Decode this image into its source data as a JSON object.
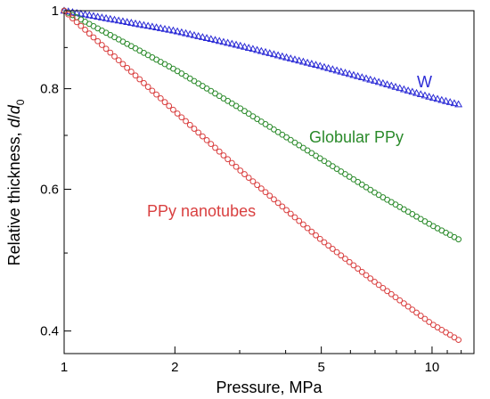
{
  "chart_data": {
    "type": "scatter",
    "x_scale": "log",
    "y_scale": "log",
    "xlim": [
      1,
      13
    ],
    "ylim": [
      0.375,
      1.0
    ],
    "grid": false,
    "xlabel": "Pressure, MPa",
    "ylabel_prefix": "Relative thickness, ",
    "ylabel_var": "d",
    "ylabel_sep": "/",
    "ylabel_var2": "d",
    "ylabel_sub": "0",
    "x_ticks": [
      1,
      2,
      5,
      10
    ],
    "x_tick_labels": [
      "1",
      "2",
      "5",
      "10"
    ],
    "y_ticks": [
      0.4,
      0.6,
      0.8,
      1.0
    ],
    "y_tick_labels": [
      "0.4",
      "0.6",
      "0.8",
      "1"
    ],
    "series": [
      {
        "name": "W",
        "marker": "triangle",
        "color": "#2b2bd6",
        "x": [
          1.0,
          1.5,
          2.0,
          3.0,
          5.0,
          7.0,
          10.0,
          11.8
        ],
        "y": [
          1.0,
          0.967,
          0.944,
          0.905,
          0.853,
          0.818,
          0.78,
          0.765
        ]
      },
      {
        "name": "Globular PPy",
        "marker": "circle",
        "color": "#2a8a2a",
        "x": [
          1.0,
          1.5,
          2.0,
          3.0,
          5.0,
          7.0,
          10.0,
          11.8
        ],
        "y": [
          1.0,
          0.907,
          0.845,
          0.757,
          0.654,
          0.594,
          0.541,
          0.52
        ]
      },
      {
        "name": "PPy nanotubes",
        "marker": "circle",
        "color": "#d94040",
        "x": [
          1.0,
          1.5,
          2.0,
          3.0,
          5.0,
          7.0,
          10.0,
          11.8
        ],
        "y": [
          1.0,
          0.845,
          0.75,
          0.634,
          0.519,
          0.46,
          0.408,
          0.39
        ]
      }
    ]
  }
}
